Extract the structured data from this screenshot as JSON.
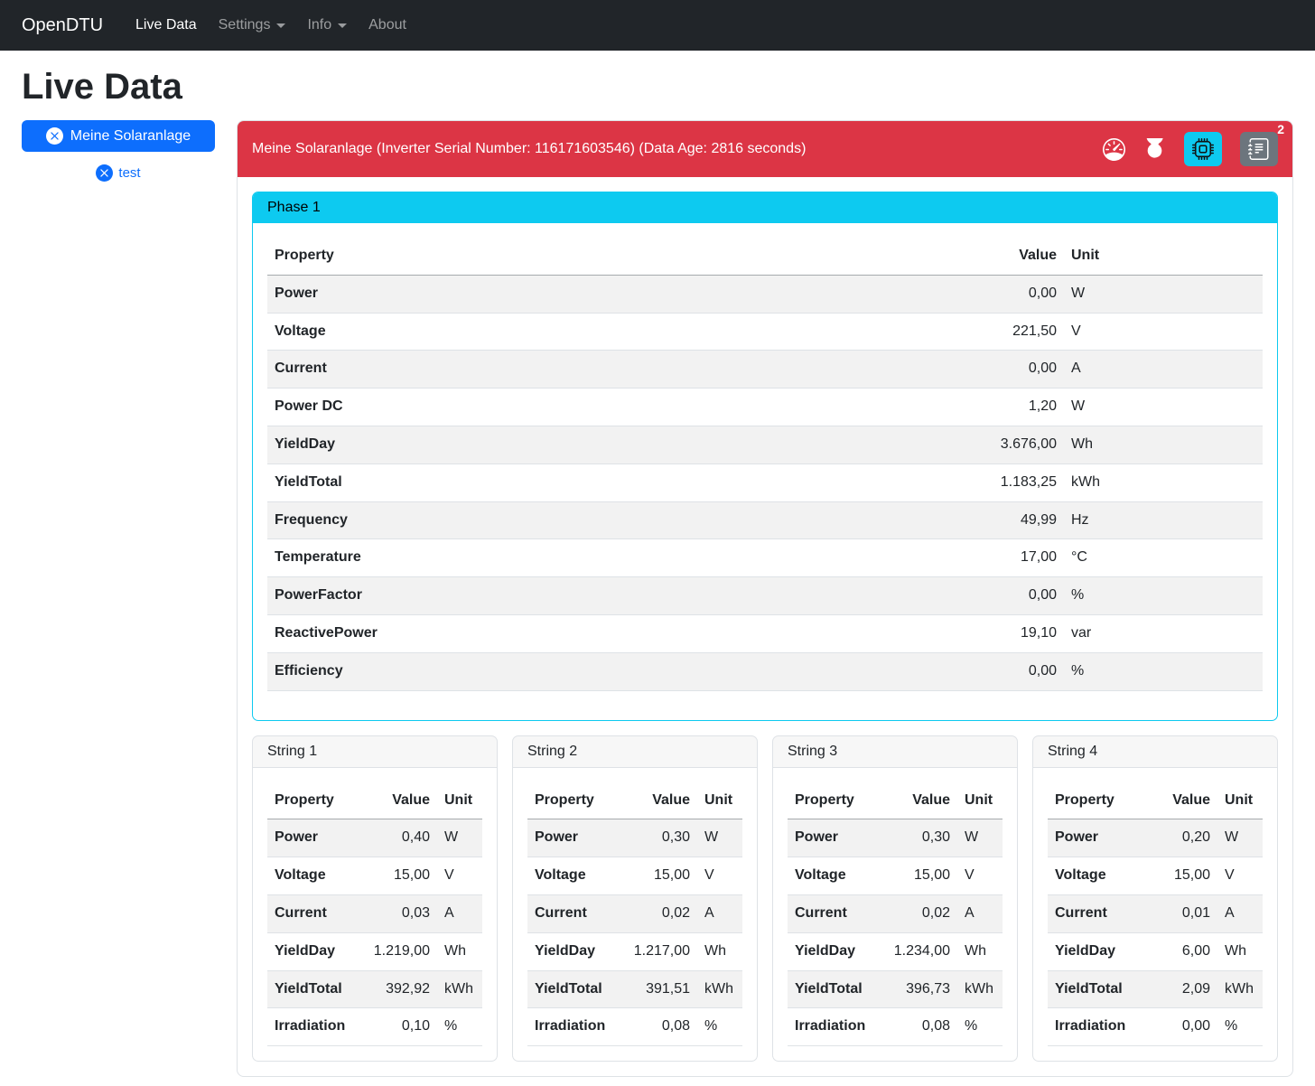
{
  "navbar": {
    "brand": "OpenDTU",
    "items": [
      {
        "label": "Live Data"
      },
      {
        "label": "Settings"
      },
      {
        "label": "Info"
      },
      {
        "label": "About"
      }
    ]
  },
  "page": {
    "title": "Live Data"
  },
  "sidebar": {
    "inverters": [
      {
        "label": "Meine Solaranlage"
      },
      {
        "label": "test"
      }
    ]
  },
  "inverter_panel": {
    "header": "Meine Solaranlage (Inverter Serial Number: 116171603546) (Data Age: 2816 seconds)",
    "event_count": "2",
    "icons": [
      "speedometer-icon",
      "power-icon",
      "cpu-icon",
      "journal-icon"
    ]
  },
  "phase": {
    "title": "Phase 1",
    "columns": [
      "Property",
      "Value",
      "Unit"
    ],
    "rows": [
      [
        "Power",
        "0,00",
        "W"
      ],
      [
        "Voltage",
        "221,50",
        "V"
      ],
      [
        "Current",
        "0,00",
        "A"
      ],
      [
        "Power DC",
        "1,20",
        "W"
      ],
      [
        "YieldDay",
        "3.676,00",
        "Wh"
      ],
      [
        "YieldTotal",
        "1.183,25",
        "kWh"
      ],
      [
        "Frequency",
        "49,99",
        "Hz"
      ],
      [
        "Temperature",
        "17,00",
        "°C"
      ],
      [
        "PowerFactor",
        "0,00",
        "%"
      ],
      [
        "ReactivePower",
        "19,10",
        "var"
      ],
      [
        "Efficiency",
        "0,00",
        "%"
      ]
    ]
  },
  "strings": [
    {
      "title": "String 1",
      "columns": [
        "Property",
        "Value",
        "Unit"
      ],
      "rows": [
        [
          "Power",
          "0,40",
          "W"
        ],
        [
          "Voltage",
          "15,00",
          "V"
        ],
        [
          "Current",
          "0,03",
          "A"
        ],
        [
          "YieldDay",
          "1.219,00",
          "Wh"
        ],
        [
          "YieldTotal",
          "392,92",
          "kWh"
        ],
        [
          "Irradiation",
          "0,10",
          "%"
        ]
      ]
    },
    {
      "title": "String 2",
      "columns": [
        "Property",
        "Value",
        "Unit"
      ],
      "rows": [
        [
          "Power",
          "0,30",
          "W"
        ],
        [
          "Voltage",
          "15,00",
          "V"
        ],
        [
          "Current",
          "0,02",
          "A"
        ],
        [
          "YieldDay",
          "1.217,00",
          "Wh"
        ],
        [
          "YieldTotal",
          "391,51",
          "kWh"
        ],
        [
          "Irradiation",
          "0,08",
          "%"
        ]
      ]
    },
    {
      "title": "String 3",
      "columns": [
        "Property",
        "Value",
        "Unit"
      ],
      "rows": [
        [
          "Power",
          "0,30",
          "W"
        ],
        [
          "Voltage",
          "15,00",
          "V"
        ],
        [
          "Current",
          "0,02",
          "A"
        ],
        [
          "YieldDay",
          "1.234,00",
          "Wh"
        ],
        [
          "YieldTotal",
          "396,73",
          "kWh"
        ],
        [
          "Irradiation",
          "0,08",
          "%"
        ]
      ]
    },
    {
      "title": "String 4",
      "columns": [
        "Property",
        "Value",
        "Unit"
      ],
      "rows": [
        [
          "Power",
          "0,20",
          "W"
        ],
        [
          "Voltage",
          "15,00",
          "V"
        ],
        [
          "Current",
          "0,01",
          "A"
        ],
        [
          "YieldDay",
          "6,00",
          "Wh"
        ],
        [
          "YieldTotal",
          "2,09",
          "kWh"
        ],
        [
          "Irradiation",
          "0,00",
          "%"
        ]
      ]
    }
  ],
  "colors": {
    "navbar_bg": "#212529",
    "danger": "#dc3545",
    "info": "#0dcaf0",
    "primary": "#0d6efd",
    "secondary": "#6c757d"
  }
}
